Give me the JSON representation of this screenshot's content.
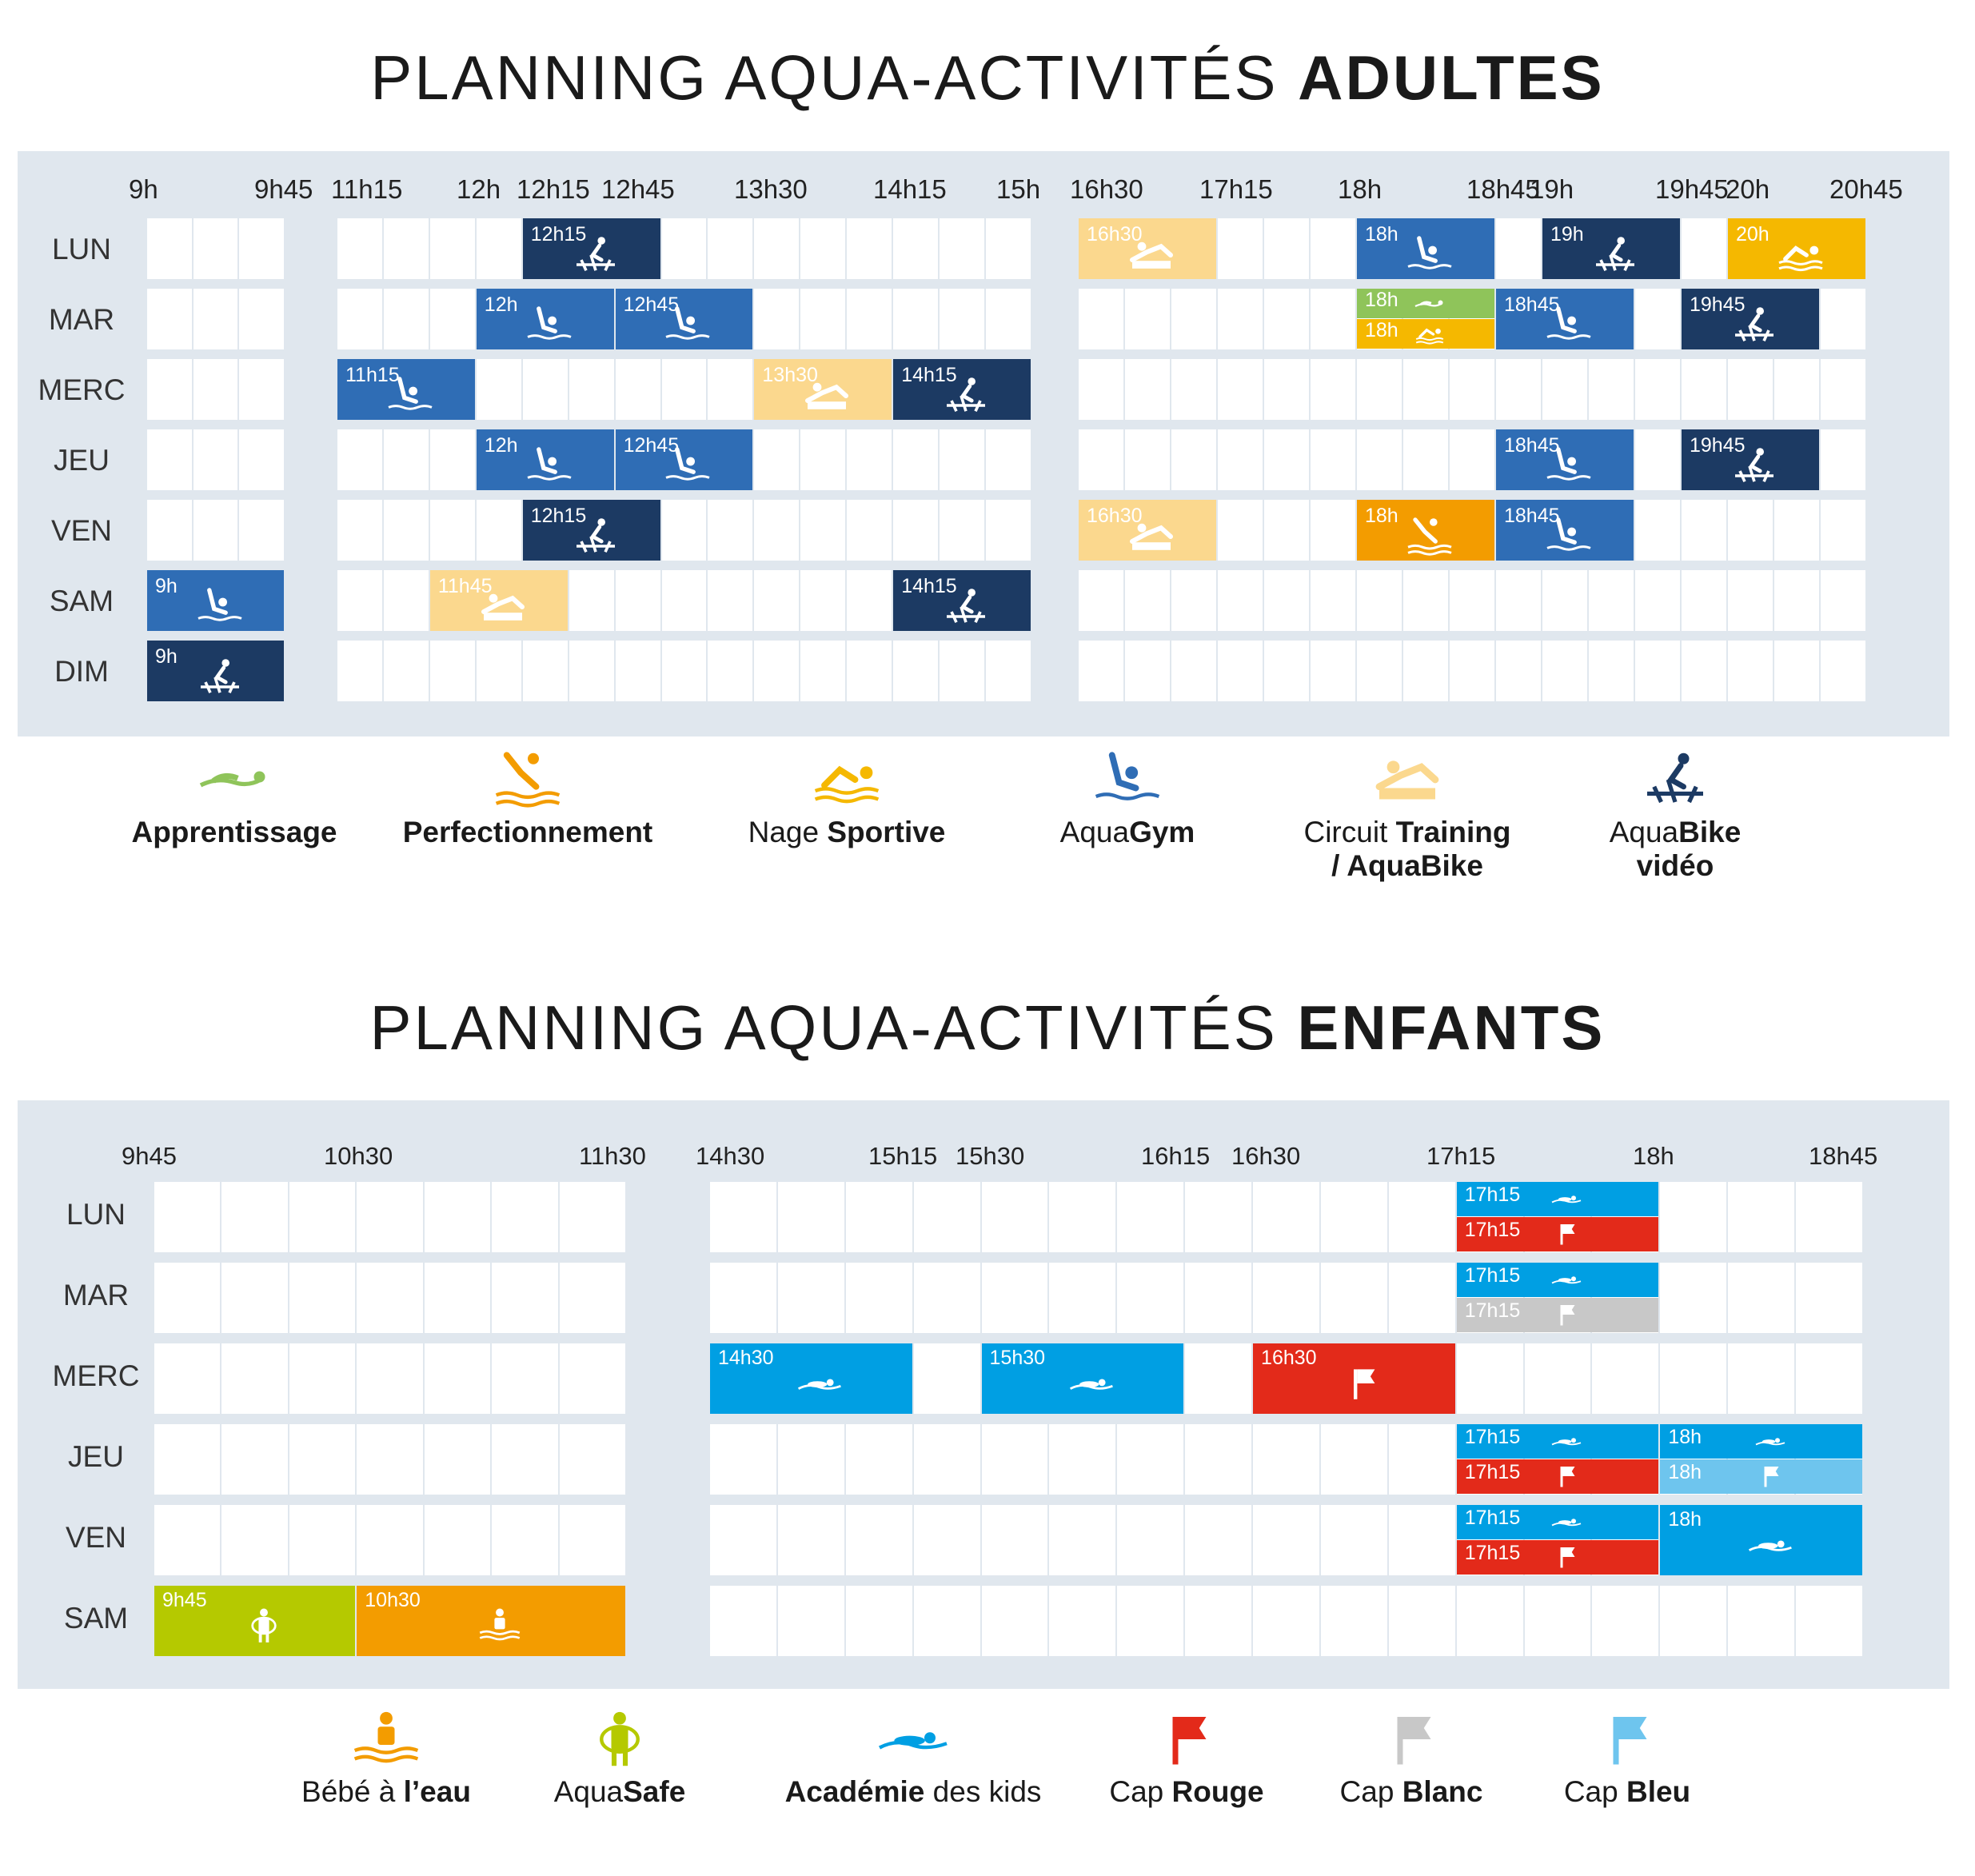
{
  "adults": {
    "title_light": "PLANNING AQUA-ACTIVITÉS ",
    "title_bold": "ADULTES",
    "days": [
      "LUN",
      "MAR",
      "MERC",
      "JEU",
      "VEN",
      "SAM",
      "DIM"
    ],
    "time_labels": [
      "9h",
      "9h45",
      "11h15",
      "12h",
      "12h15",
      "12h45",
      "13h30",
      "14h15",
      "15h",
      "16h30",
      "17h15",
      "18h",
      "18h45",
      "19h",
      "19h45",
      "20h",
      "20h45"
    ],
    "legend": [
      {
        "light": "",
        "bold": "Apprentissage",
        "icon": "swimmer-learning-icon",
        "color": "#8fc45a"
      },
      {
        "light": "",
        "bold": "Perfectionnement",
        "icon": "diver-icon",
        "color": "#f39c00"
      },
      {
        "light": "Nage ",
        "bold": "Sportive",
        "icon": "swimmer-sport-icon",
        "color": "#f5b800"
      },
      {
        "light": "Aqua",
        "bold": "Gym",
        "icon": "aquagym-icon",
        "color": "#2f6db5"
      },
      {
        "light": "Circuit ",
        "bold": "Training",
        "light2": "/ AquaBike",
        "icon": "circuit-training-icon",
        "color": "#fbd88e"
      },
      {
        "light": "Aqua",
        "bold": "Bike",
        "bold2": "vidéo",
        "icon": "aquabike-icon",
        "color": "#1c3a63"
      }
    ],
    "sessions": [
      {
        "day": 0,
        "time": "12h15",
        "type": "bike"
      },
      {
        "day": 0,
        "time": "16h30",
        "type": "circuit"
      },
      {
        "day": 0,
        "time": "18h",
        "type": "gym"
      },
      {
        "day": 0,
        "time": "19h",
        "type": "bike"
      },
      {
        "day": 0,
        "time": "20h",
        "type": "sport"
      },
      {
        "day": 1,
        "time": "12h",
        "type": "gym"
      },
      {
        "day": 1,
        "time": "12h45",
        "type": "gym"
      },
      {
        "day": 1,
        "time": "18h",
        "type": "learn"
      },
      {
        "day": 1,
        "time": "18h",
        "type": "sport"
      },
      {
        "day": 1,
        "time": "18h45",
        "type": "gym"
      },
      {
        "day": 1,
        "time": "19h45",
        "type": "bike"
      },
      {
        "day": 2,
        "time": "11h15",
        "type": "gym"
      },
      {
        "day": 2,
        "time": "13h30",
        "type": "circuit"
      },
      {
        "day": 2,
        "time": "14h15",
        "type": "bike"
      },
      {
        "day": 3,
        "time": "12h",
        "type": "gym"
      },
      {
        "day": 3,
        "time": "12h45",
        "type": "gym"
      },
      {
        "day": 3,
        "time": "18h45",
        "type": "gym"
      },
      {
        "day": 3,
        "time": "19h45",
        "type": "bike"
      },
      {
        "day": 4,
        "time": "12h15",
        "type": "bike"
      },
      {
        "day": 4,
        "time": "16h30",
        "type": "circuit"
      },
      {
        "day": 4,
        "time": "18h",
        "type": "perf"
      },
      {
        "day": 4,
        "time": "18h45",
        "type": "gym"
      },
      {
        "day": 5,
        "time": "9h",
        "type": "gym"
      },
      {
        "day": 5,
        "time": "11h45",
        "type": "circuit"
      },
      {
        "day": 5,
        "time": "14h15",
        "type": "bike"
      },
      {
        "day": 6,
        "time": "9h",
        "type": "bike"
      }
    ]
  },
  "kids": {
    "title_light": "PLANNING AQUA-ACTIVITÉS ",
    "title_bold": "ENFANTS",
    "days": [
      "LUN",
      "MAR",
      "MERC",
      "JEU",
      "VEN",
      "SAM"
    ],
    "time_labels": [
      "9h45",
      "10h30",
      "11h30",
      "14h30",
      "15h15",
      "15h30",
      "16h15",
      "16h30",
      "17h15",
      "18h",
      "18h45"
    ],
    "legend": [
      {
        "light": "Bébé à ",
        "bold": "l’eau",
        "icon": "baby-water-icon",
        "color": "#f39c00"
      },
      {
        "light": "Aqua",
        "bold": "Safe",
        "icon": "aquasafe-icon",
        "color": "#b5c900"
      },
      {
        "light": " des kids",
        "bold": "Académie",
        "boldfirst": true,
        "icon": "kids-academy-icon",
        "color": "#009fe3"
      },
      {
        "light": "Cap ",
        "bold": "Rouge",
        "icon": "red-flag-icon",
        "color": "#e32a1a"
      },
      {
        "light": "Cap ",
        "bold": "Blanc",
        "icon": "white-flag-icon",
        "color": "#c8c8c8"
      },
      {
        "light": "Cap ",
        "bold": "Bleu",
        "icon": "blue-flag-icon",
        "color": "#6ec5ee"
      }
    ],
    "sessions": [
      {
        "day": 0,
        "time": "17h15",
        "type": "academy"
      },
      {
        "day": 0,
        "time": "17h15",
        "type": "red"
      },
      {
        "day": 1,
        "time": "17h15",
        "type": "academy"
      },
      {
        "day": 1,
        "time": "17h15",
        "type": "white"
      },
      {
        "day": 2,
        "time": "14h30",
        "type": "academy"
      },
      {
        "day": 2,
        "time": "15h30",
        "type": "academy"
      },
      {
        "day": 2,
        "time": "16h30",
        "type": "red"
      },
      {
        "day": 3,
        "time": "17h15",
        "type": "academy"
      },
      {
        "day": 3,
        "time": "18h",
        "type": "academy"
      },
      {
        "day": 3,
        "time": "17h15",
        "type": "red"
      },
      {
        "day": 3,
        "time": "18h",
        "type": "blue"
      },
      {
        "day": 4,
        "time": "17h15",
        "type": "academy"
      },
      {
        "day": 4,
        "time": "17h15",
        "type": "red"
      },
      {
        "day": 4,
        "time": "18h",
        "type": "academy"
      },
      {
        "day": 5,
        "time": "9h45",
        "type": "safe"
      },
      {
        "day": 5,
        "time": "10h30",
        "type": "baby"
      }
    ]
  }
}
